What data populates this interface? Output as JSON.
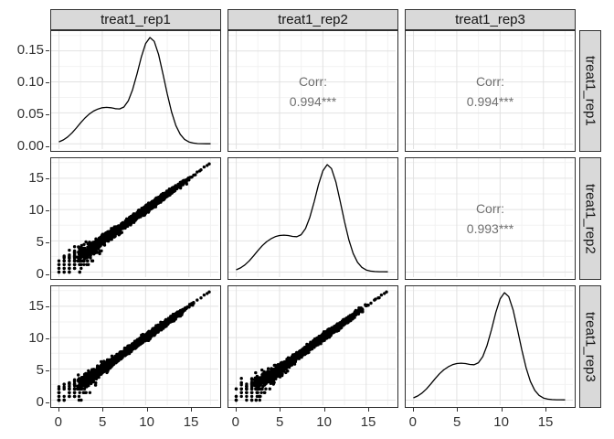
{
  "figure": {
    "background": "#ffffff",
    "panel_border": "#2e2e2e",
    "strip_bg": "#d9d9d9",
    "strip_border": "#333333",
    "grid_major": "#e2e2e2",
    "grid_minor": "#f2f2f2",
    "axis_text_color": "#333333",
    "corr_text_color": "#6f6f6f",
    "curve_color": "#000000",
    "point_color": "#000000"
  },
  "chart_data": {
    "type": "scatter",
    "subtype": "scatterplot-matrix (ggpairs)",
    "variables": [
      "treat1_rep1",
      "treat1_rep2",
      "treat1_rep3"
    ],
    "col_strips": [
      "treat1_rep1",
      "treat1_rep2",
      "treat1_rep3"
    ],
    "row_strips": [
      "treat1_rep1",
      "treat1_rep2",
      "treat1_rep3"
    ],
    "correlations": [
      {
        "pair": "treat1_rep1-treat1_rep2",
        "label": "Corr:",
        "value": "0.994***"
      },
      {
        "pair": "treat1_rep1-treat1_rep3",
        "label": "Corr:",
        "value": "0.994***"
      },
      {
        "pair": "treat1_rep2-treat1_rep3",
        "label": "Corr:",
        "value": "0.993***"
      }
    ],
    "axes": {
      "x": {
        "range": [
          -0.9,
          18.4
        ],
        "majors": [
          0,
          5,
          10,
          15
        ],
        "minors": [
          2.5,
          7.5,
          12.5,
          17.5
        ],
        "decimals": 0
      },
      "density_y": {
        "range": [
          -0.0085,
          0.182
        ],
        "majors": [
          0,
          0.05,
          0.1,
          0.15
        ],
        "minors": [
          0.025,
          0.075,
          0.125,
          0.175
        ],
        "decimals": 2
      },
      "value_y": {
        "range": [
          -0.8,
          18.2
        ],
        "majors": [
          0,
          5,
          10,
          15
        ],
        "minors": [
          2.5,
          7.5,
          12.5,
          17.5
        ],
        "decimals": 0
      }
    },
    "density_curve": {
      "x": [
        0,
        0.5,
        1,
        1.5,
        2,
        2.5,
        3,
        3.5,
        4,
        4.5,
        5,
        5.5,
        6,
        6.5,
        7,
        7.5,
        8,
        8.5,
        9,
        9.5,
        10,
        10.5,
        11,
        11.5,
        12,
        12.5,
        13,
        13.5,
        14,
        14.5,
        15,
        15.5,
        16,
        16.5,
        17,
        17.5
      ],
      "y": [
        0.0032,
        0.0063,
        0.011,
        0.0176,
        0.0255,
        0.0339,
        0.0417,
        0.0481,
        0.0529,
        0.0562,
        0.0582,
        0.0588,
        0.0582,
        0.0567,
        0.0563,
        0.0595,
        0.0693,
        0.0873,
        0.1124,
        0.1398,
        0.1619,
        0.1717,
        0.1654,
        0.144,
        0.1132,
        0.0802,
        0.0513,
        0.0295,
        0.0153,
        0.0072,
        0.003,
        0.0012,
        0.0004,
        0.0002,
        0.0001,
        0.0
      ]
    },
    "scatter_sim": {
      "n": 2600,
      "radius": 1.7,
      "mixture": [
        {
          "w": 0.66,
          "mu": 10.6,
          "sd": 1.55
        },
        {
          "w": 0.23,
          "mu": 6.0,
          "sd": 1.8
        },
        {
          "w": 0.11,
          "mu": 3.2,
          "sd": 1.5
        }
      ],
      "noise_base": 0.15,
      "noise_scale": 1.25,
      "noise_decay": 2.3,
      "quantize_below": 2.1,
      "quantize_step": 0.6,
      "clamp": [
        0,
        17.6
      ],
      "seeds": [
        1101,
        2203,
        3307
      ],
      "anchors": [
        [
          15.55,
          15.5
        ],
        [
          15.95,
          16.0
        ],
        [
          16.4,
          16.35
        ],
        [
          16.75,
          16.8
        ],
        [
          17.1,
          17.05
        ],
        [
          17.35,
          17.3
        ]
      ]
    },
    "panels": [
      {
        "r": 0,
        "c": 0,
        "kind": "density",
        "ykey": "density_y"
      },
      {
        "r": 0,
        "c": 1,
        "kind": "corr",
        "ykey": "value_y",
        "corr": 0
      },
      {
        "r": 0,
        "c": 2,
        "kind": "corr",
        "ykey": "value_y",
        "corr": 1
      },
      {
        "r": 1,
        "c": 0,
        "kind": "scatter",
        "ykey": "value_y",
        "seed": 0
      },
      {
        "r": 1,
        "c": 1,
        "kind": "density",
        "ykey": "value_y"
      },
      {
        "r": 1,
        "c": 2,
        "kind": "corr",
        "ykey": "value_y",
        "corr": 2
      },
      {
        "r": 2,
        "c": 0,
        "kind": "scatter",
        "ykey": "value_y",
        "seed": 1
      },
      {
        "r": 2,
        "c": 1,
        "kind": "scatter",
        "ykey": "value_y",
        "seed": 2
      },
      {
        "r": 2,
        "c": 2,
        "kind": "density",
        "ykey": "value_y"
      }
    ],
    "row_axis_keys": [
      "density_y",
      "value_y",
      "value_y"
    ]
  }
}
